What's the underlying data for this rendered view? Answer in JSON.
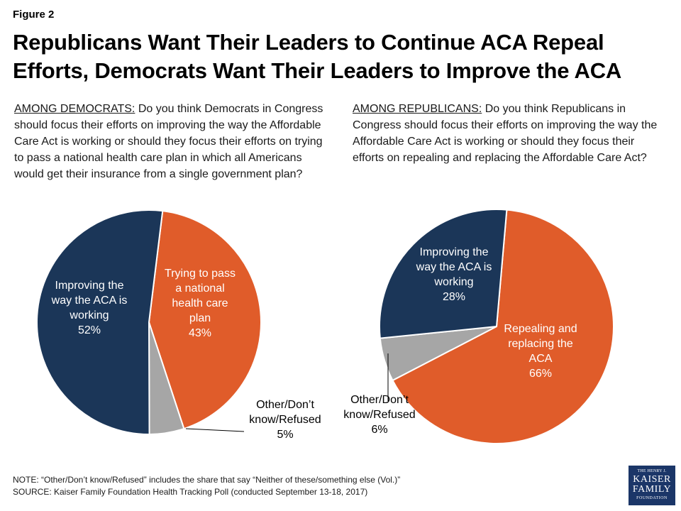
{
  "figure_label": "Figure 2",
  "title_line1": "Republicans Want Their Leaders to Continue ACA Repeal",
  "title_line2": "Efforts, Democrats Want Their Leaders to Improve the ACA",
  "left_question": {
    "label": "AMONG DEMOCRATS:",
    "text": " Do you think Democrats in Congress should focus their efforts on improving the way the Affordable Care Act is working or should they focus their efforts on trying to pass a national health care plan in which all Americans would get their insurance from a single government plan?"
  },
  "right_question": {
    "label": "AMONG REPUBLICANS:",
    "text": " Do you think Republicans in Congress should focus their efforts on improving the way the Affordable Care Act is working or should they focus their efforts on repealing and replacing the Affordable Care Act?"
  },
  "chart_data": [
    {
      "type": "pie",
      "slices": [
        {
          "label_lines": [
            "Trying to pass",
            "a national",
            "health care",
            "plan"
          ],
          "value": 43,
          "value_label": "43%",
          "color": "#e05c2a",
          "label_color": "#ffffff"
        },
        {
          "label_lines": [
            "Other/Don’t",
            "know/Refused"
          ],
          "value": 5,
          "value_label": "5%",
          "color": "#a6a6a6",
          "label_color": "#000000"
        },
        {
          "label_lines": [
            "Improving the",
            "way the ACA is",
            "working"
          ],
          "value": 52,
          "value_label": "52%",
          "color": "#1b3658",
          "label_color": "#ffffff"
        }
      ]
    },
    {
      "type": "pie",
      "slices": [
        {
          "label_lines": [
            "Repealing and",
            "replacing the",
            "ACA"
          ],
          "value": 66,
          "value_label": "66%",
          "color": "#e05c2a",
          "label_color": "#ffffff"
        },
        {
          "label_lines": [
            "Other/Don’t",
            "know/Refused"
          ],
          "value": 6,
          "value_label": "6%",
          "color": "#a6a6a6",
          "label_color": "#000000"
        },
        {
          "label_lines": [
            "Improving the",
            "way the ACA is",
            "working"
          ],
          "value": 28,
          "value_label": "28%",
          "color": "#1b3658",
          "label_color": "#ffffff"
        }
      ]
    }
  ],
  "note_line": "NOTE: “Other/Don’t know/Refused” includes the share that say “Neither of these/something else (Vol.)”",
  "source_line": "SOURCE: Kaiser Family Foundation Health Tracking Poll (conducted September 13-18, 2017)",
  "logo": {
    "line1": "THE HENRY J.",
    "line2": "KAISER",
    "line3": "FAMILY",
    "line4": "FOUNDATION"
  }
}
